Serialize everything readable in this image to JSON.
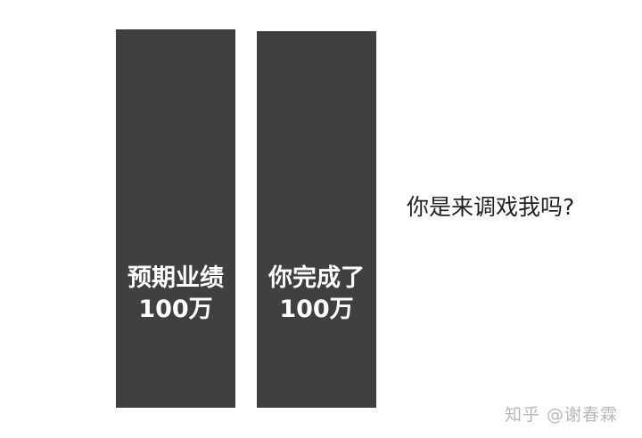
{
  "chart_data": {
    "type": "bar",
    "categories": [
      "预期业绩 100万",
      "你完成了 100万"
    ],
    "values": [
      100,
      100
    ],
    "bars": [
      {
        "label_line1": "预期业绩",
        "label_line2": "100万",
        "value": 100
      },
      {
        "label_line1": "你完成了",
        "label_line2": "100万",
        "value": 100
      }
    ],
    "annotations": [
      "你是来调戏我吗?"
    ],
    "bar_color": "#404040",
    "label_color": "#ffffff",
    "grid": false,
    "legend": "none"
  },
  "watermark": "知乎 @谢春霖"
}
